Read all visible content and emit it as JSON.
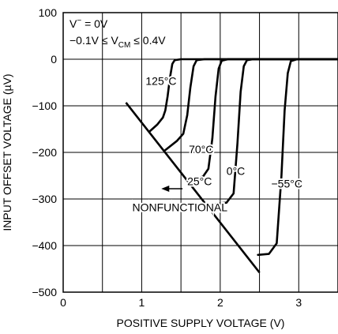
{
  "chart_data": {
    "type": "line",
    "title": "",
    "xlabel": "POSITIVE SUPPLY VOLTAGE (V)",
    "ylabel": "INPUT OFFSET VOLTAGE (µV)",
    "xlim": [
      0,
      3.5
    ],
    "ylim": [
      -500,
      100
    ],
    "x_ticks": [
      0,
      1,
      2,
      3
    ],
    "y_ticks": [
      100,
      0,
      -100,
      -200,
      -300,
      -400,
      -500
    ],
    "x_tick_labels": [
      "0",
      "1",
      "2",
      "3"
    ],
    "y_tick_labels": [
      "100",
      "0",
      "−100",
      "−200",
      "−300",
      "−400",
      "−500"
    ],
    "grid": true,
    "conditions": {
      "line1": {
        "prefix": "V",
        "sup": "−",
        "suffix": " = 0V"
      },
      "line2": {
        "prefix": "−0.1V ≤ V",
        "sub": "CM",
        "suffix": " ≤ 0.4V"
      }
    },
    "series": [
      {
        "name": "125°C",
        "label": "125°C",
        "label_at": [
          1.05,
          -47
        ],
        "points": [
          [
            1.1,
            -155
          ],
          [
            1.2,
            -140
          ],
          [
            1.27,
            -125
          ],
          [
            1.3,
            -110
          ],
          [
            1.33,
            -80
          ],
          [
            1.36,
            -40
          ],
          [
            1.39,
            -10
          ],
          [
            1.42,
            -2
          ],
          [
            1.5,
            0
          ],
          [
            3.5,
            0
          ]
        ]
      },
      {
        "name": "70°C",
        "label": "70°C",
        "label_at": [
          1.6,
          -193
        ],
        "points": [
          [
            1.3,
            -195
          ],
          [
            1.45,
            -175
          ],
          [
            1.53,
            -160
          ],
          [
            1.58,
            -120
          ],
          [
            1.62,
            -60
          ],
          [
            1.66,
            -15
          ],
          [
            1.7,
            -2
          ],
          [
            1.8,
            0
          ],
          [
            3.5,
            0
          ]
        ]
      },
      {
        "name": "25°C",
        "label": "25°C",
        "label_at": [
          1.58,
          -262
        ],
        "points": [
          [
            1.65,
            -258
          ],
          [
            1.78,
            -252
          ],
          [
            1.85,
            -235
          ],
          [
            1.9,
            -170
          ],
          [
            1.94,
            -80
          ],
          [
            1.98,
            -20
          ],
          [
            2.02,
            -3
          ],
          [
            2.1,
            0
          ],
          [
            3.5,
            0
          ]
        ]
      },
      {
        "name": "0°C",
        "label": "0°C",
        "label_at": [
          2.08,
          -240
        ],
        "points": [
          [
            1.95,
            -310
          ],
          [
            2.08,
            -308
          ],
          [
            2.17,
            -288
          ],
          [
            2.22,
            -180
          ],
          [
            2.26,
            -70
          ],
          [
            2.3,
            -15
          ],
          [
            2.34,
            -2
          ],
          [
            2.42,
            0
          ],
          [
            3.5,
            0
          ]
        ]
      },
      {
        "name": "−55°C",
        "label": "−55°C",
        "label_at": [
          2.65,
          -267
        ],
        "points": [
          [
            2.48,
            -420
          ],
          [
            2.62,
            -418
          ],
          [
            2.72,
            -395
          ],
          [
            2.78,
            -250
          ],
          [
            2.82,
            -110
          ],
          [
            2.86,
            -30
          ],
          [
            2.9,
            -4
          ],
          [
            2.98,
            0
          ],
          [
            3.5,
            0
          ]
        ]
      }
    ],
    "boundary": {
      "points": [
        [
          0.8,
          -93
        ],
        [
          2.5,
          -458
        ]
      ]
    },
    "annotation": {
      "text": "NONFUNCTIONAL",
      "text_at": [
        0.88,
        -318
      ],
      "arrow_from": [
        1.52,
        -278
      ],
      "arrow_to": [
        1.25,
        -278
      ]
    }
  }
}
